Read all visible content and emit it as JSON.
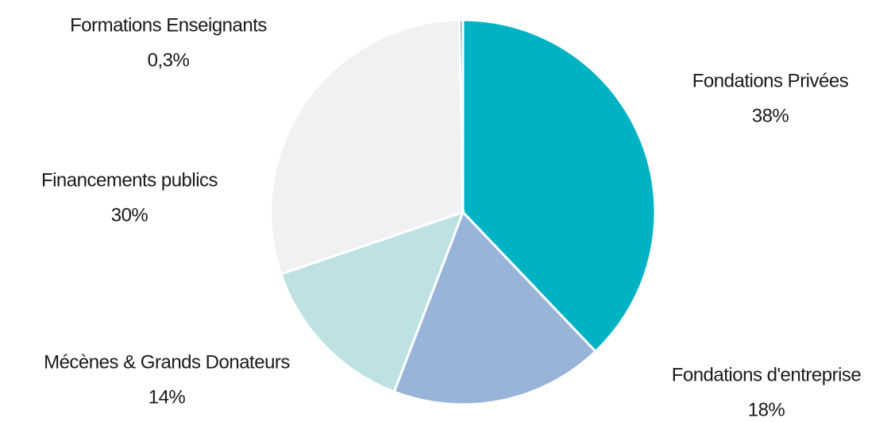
{
  "chart_data": {
    "type": "pie",
    "categories": [
      "Fondations Privées",
      "Fondations d'entreprise",
      "Mécènes & Grands Donateurs",
      "Financements publics",
      "Formations Enseignants"
    ],
    "values": [
      38,
      18,
      14,
      30,
      0.3
    ],
    "value_labels": [
      "38%",
      "18%",
      "14%",
      "30%",
      "0,3%"
    ],
    "colors": [
      "#00b3c4",
      "#98b4d8",
      "#bee2e3",
      "#f0f1f3",
      "#7fa8a8"
    ]
  }
}
